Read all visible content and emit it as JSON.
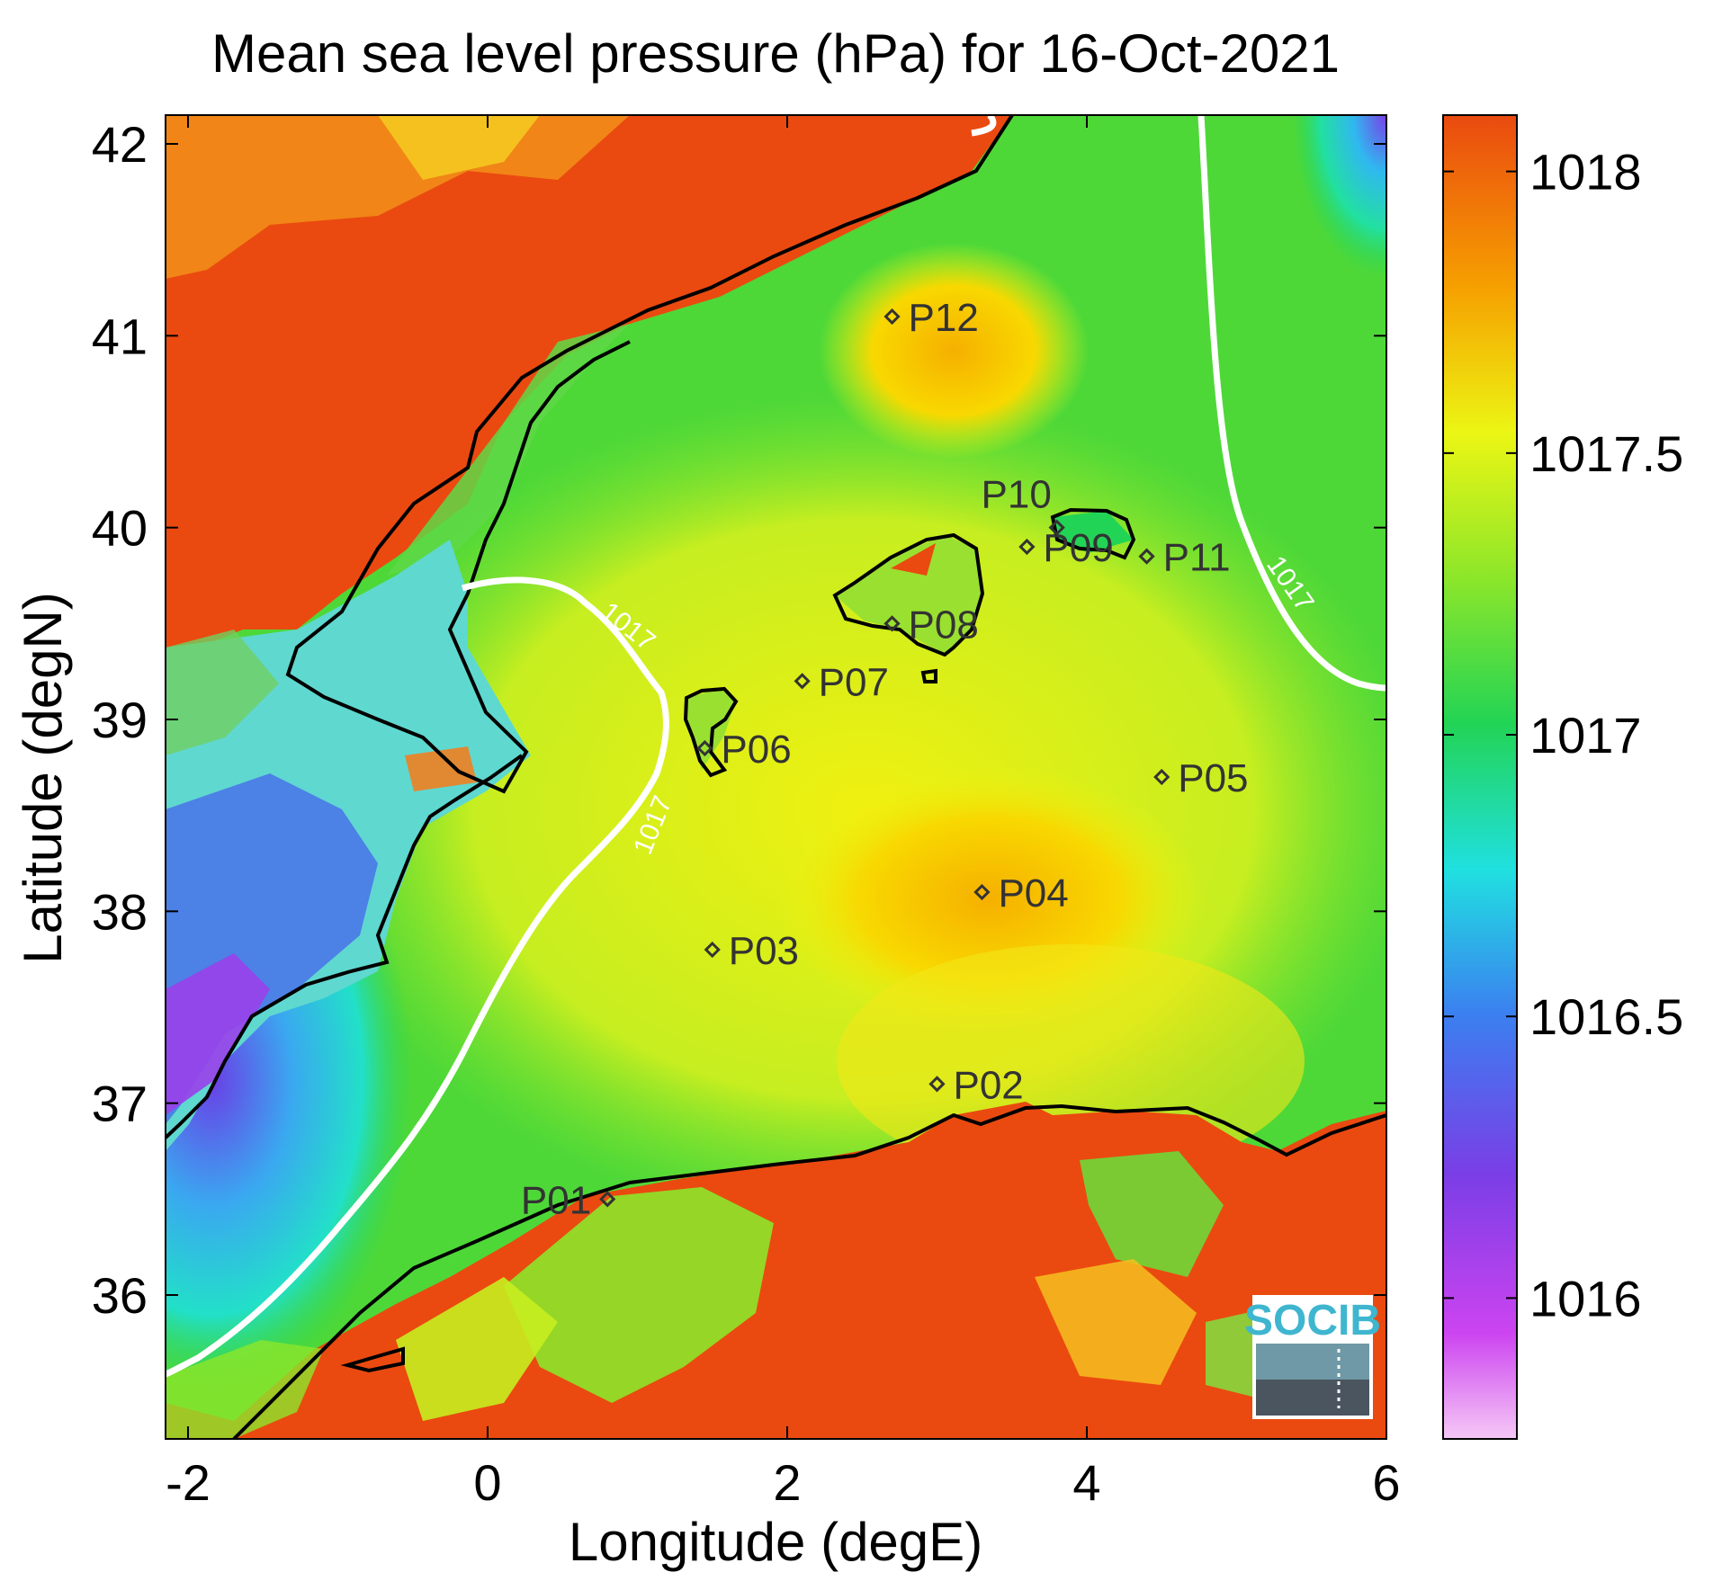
{
  "title": "Mean sea level pressure (hPa) for 16-Oct-2021",
  "xlabel": "Longitude (degE)",
  "ylabel": "Latitude (degN)",
  "map": {
    "xlim": [
      -2.15,
      6.0
    ],
    "ylim": [
      35.25,
      42.15
    ],
    "x_ticks": [
      "-2",
      "0",
      "2",
      "4",
      "6"
    ],
    "y_ticks": [
      "42",
      "41",
      "40",
      "39",
      "38",
      "37",
      "36"
    ],
    "x_tick_values": [
      -2,
      0,
      2,
      4,
      6
    ],
    "y_tick_values": [
      42,
      41,
      40,
      39,
      38,
      37,
      36
    ],
    "contour_label": "1017",
    "stations": [
      {
        "id": "P01",
        "lon": 0.8,
        "lat": 36.5
      },
      {
        "id": "P02",
        "lon": 3.0,
        "lat": 37.1
      },
      {
        "id": "P03",
        "lon": 1.5,
        "lat": 37.8
      },
      {
        "id": "P04",
        "lon": 3.3,
        "lat": 38.1
      },
      {
        "id": "P05",
        "lon": 4.5,
        "lat": 38.7
      },
      {
        "id": "P06",
        "lon": 1.45,
        "lat": 38.85
      },
      {
        "id": "P07",
        "lon": 2.1,
        "lat": 39.2
      },
      {
        "id": "P08",
        "lon": 2.7,
        "lat": 39.5
      },
      {
        "id": "P09",
        "lon": 3.6,
        "lat": 39.9
      },
      {
        "id": "P10",
        "lon": 3.8,
        "lat": 40.0
      },
      {
        "id": "P11",
        "lon": 4.4,
        "lat": 39.85
      },
      {
        "id": "P12",
        "lon": 2.7,
        "lat": 41.1
      }
    ]
  },
  "colorbar": {
    "ticks": [
      "1018",
      "1017.5",
      "1017",
      "1016.5",
      "1016"
    ],
    "range": [
      1015.75,
      1018.1
    ],
    "colors": [
      "#f0b0f0",
      "#cc44f0",
      "#7a3ee6",
      "#3b7ff0",
      "#20e0e0",
      "#22d455",
      "#6fe030",
      "#ecf614",
      "#f6a000",
      "#ea4a10"
    ]
  },
  "logo": "SOCIB"
}
